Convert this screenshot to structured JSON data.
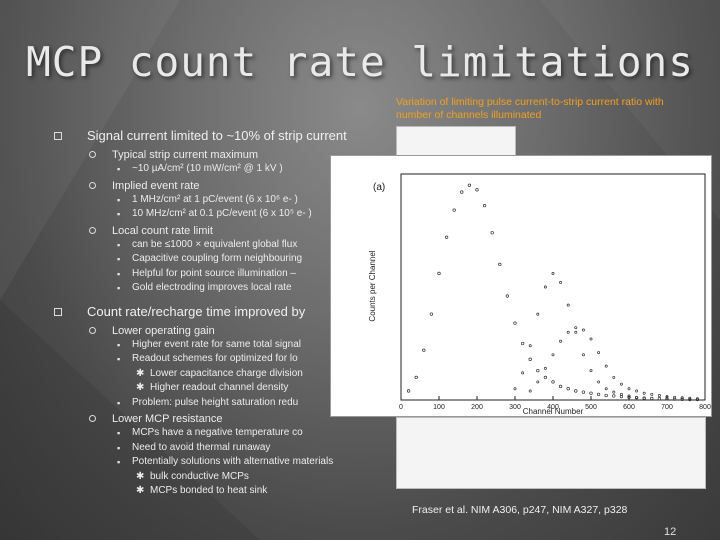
{
  "slide": {
    "title": "MCP count rate limitations",
    "caption": "Variation of limiting pulse current-to-strip current ratio with number of channels illuminated",
    "reference": "Fraser et al. NIM A306, p247, NIM A327, p328",
    "page_number": "12"
  },
  "bullets": [
    {
      "text": "Signal current limited to ~10% of strip current",
      "children": [
        {
          "text": "Typical strip current maximum",
          "children": [
            {
              "text": "~10 µA/cm² (10 mW/cm² @ 1 kV )"
            }
          ]
        },
        {
          "text": "Implied event  rate",
          "children": [
            {
              "text": "1 MHz/cm² at 1 pC/event (6 x 10⁶ e- )"
            },
            {
              "text": "10 MHz/cm² at 0.1 pC/event (6 x 10⁵ e- )"
            }
          ]
        },
        {
          "text": "Local count rate limit",
          "children": [
            {
              "text": "can be ≤1000 × equivalent global flux"
            },
            {
              "text": "Capacitive coupling form neighbouring"
            },
            {
              "text": "Helpful for point source illumination –"
            },
            {
              "text": "Gold electroding improves local rate"
            }
          ]
        }
      ]
    },
    {
      "text": "Count rate/recharge time improved by",
      "children": [
        {
          "text": "Lower operating gain",
          "children": [
            {
              "text": "Higher event rate for same total signal",
              "children": []
            },
            {
              "text": "Readout schemes for optimized for lo",
              "children": [
                "Lower capacitance charge division",
                "Higher readout channel density"
              ]
            },
            {
              "text": "Problem: pulse height saturation redu",
              "children": []
            }
          ]
        },
        {
          "text": "Lower MCP resistance",
          "children": [
            {
              "text": "MCPs have a negative temperature co",
              "children": []
            },
            {
              "text": "Need to avoid thermal runaway",
              "children": []
            },
            {
              "text": "Potentially solutions with alternative materials",
              "children": [
                "bulk conductive MCPs",
                "MCPs bonded to heat sink"
              ]
            }
          ]
        }
      ]
    }
  ],
  "chart_data": {
    "type": "scatter",
    "panel_label": "(a)",
    "xlabel": "Channel Number",
    "ylabel": "Counts per Channel",
    "xlim": [
      0,
      800
    ],
    "x_ticks": [
      "0",
      "100",
      "200",
      "300",
      "400",
      "500",
      "600",
      "700",
      "800"
    ],
    "grid": false,
    "series": [
      {
        "x": [
          20,
          40,
          60,
          80,
          100,
          120,
          140,
          160,
          180,
          200,
          220,
          240,
          260,
          280,
          300,
          320,
          340,
          360,
          380,
          400,
          420,
          440,
          460,
          480,
          500,
          520,
          540,
          560,
          580,
          600,
          620,
          640,
          660,
          680,
          700,
          720,
          740,
          760,
          780
        ],
        "y": [
          0.04,
          0.1,
          0.22,
          0.38,
          0.56,
          0.72,
          0.84,
          0.92,
          0.95,
          0.93,
          0.86,
          0.74,
          0.6,
          0.46,
          0.34,
          0.25,
          0.18,
          0.13,
          0.1,
          0.08,
          0.06,
          0.05,
          0.04,
          0.035,
          0.03,
          0.025,
          0.02,
          0.018,
          0.015,
          0.012,
          0.01,
          0.008,
          0.007,
          0.006,
          0.005,
          0.004,
          0.003,
          0.002,
          0.002
        ]
      },
      {
        "x": [
          300,
          320,
          340,
          360,
          380,
          400,
          420,
          440,
          460,
          480,
          500,
          520,
          540,
          560,
          580,
          600,
          620,
          640
        ],
        "y": [
          0.05,
          0.12,
          0.24,
          0.38,
          0.5,
          0.56,
          0.52,
          0.42,
          0.3,
          0.2,
          0.13,
          0.08,
          0.05,
          0.035,
          0.025,
          0.018,
          0.012,
          0.008
        ]
      },
      {
        "x": [
          340,
          360,
          380,
          400,
          420,
          440,
          460,
          480,
          500,
          520,
          540,
          560,
          580,
          600,
          620,
          640,
          660,
          680,
          700,
          720,
          740,
          760,
          780
        ],
        "y": [
          0.04,
          0.08,
          0.14,
          0.2,
          0.26,
          0.3,
          0.32,
          0.31,
          0.27,
          0.21,
          0.15,
          0.1,
          0.07,
          0.05,
          0.04,
          0.03,
          0.025,
          0.02,
          0.015,
          0.012,
          0.01,
          0.008,
          0.006
        ]
      }
    ]
  },
  "colors": {
    "caption": "#f2a020",
    "figure_background": "#ffffff"
  }
}
